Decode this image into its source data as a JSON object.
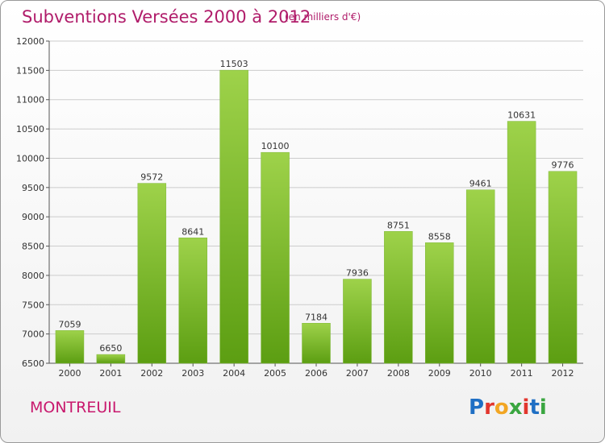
{
  "title": "Subventions Versées 2000 à 2012",
  "subtitle": "(en milliers d'€)",
  "city": "MONTREUIL",
  "logo": {
    "letters": [
      "P",
      "r",
      "o",
      "x",
      "i",
      "t",
      "i"
    ],
    "colors": [
      "#1f6fc4",
      "#e2362d",
      "#f2a623",
      "#3aa640",
      "#e2362d",
      "#1f6fc4",
      "#3aa640"
    ]
  },
  "colors": {
    "bar_light": "#9ed24a",
    "bar_dark": "#5c9e12",
    "grid": "#cccccc",
    "title": "#b01c6a"
  },
  "chart_data": {
    "type": "bar",
    "categories": [
      "2000",
      "2001",
      "2002",
      "2003",
      "2004",
      "2005",
      "2006",
      "2007",
      "2008",
      "2009",
      "2010",
      "2011",
      "2012"
    ],
    "values": [
      7059,
      6650,
      9572,
      8641,
      11503,
      10100,
      7184,
      7936,
      8751,
      8558,
      9461,
      10631,
      9776
    ],
    "ylim": [
      6500,
      12000
    ],
    "yticks": [
      6500,
      7000,
      7500,
      8000,
      8500,
      9000,
      9500,
      10000,
      10500,
      11000,
      11500,
      12000
    ],
    "grid": true,
    "legend": false
  }
}
